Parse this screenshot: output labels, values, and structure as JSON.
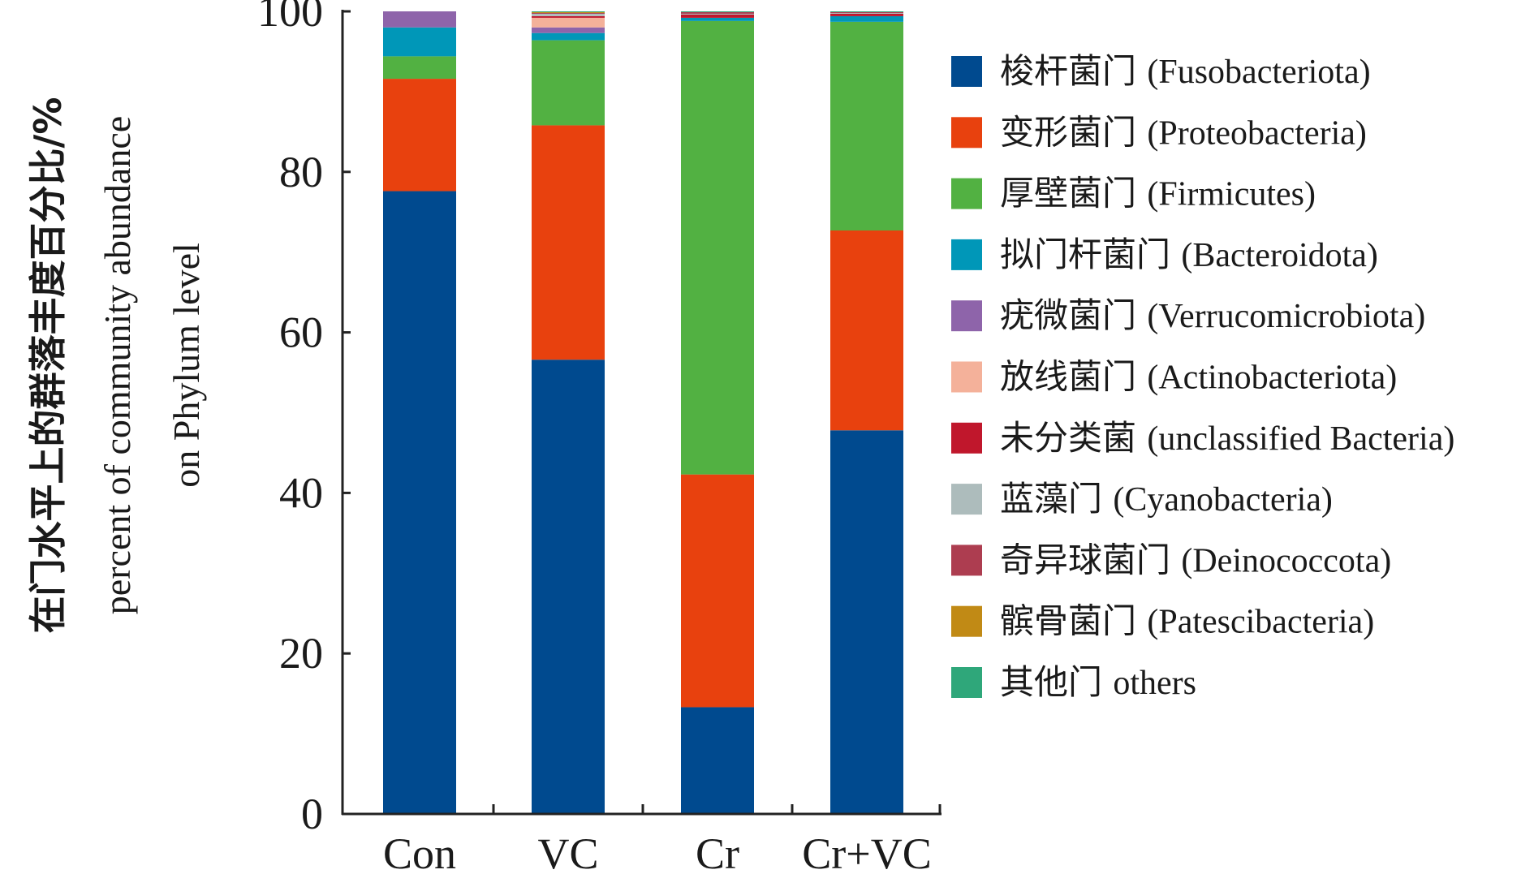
{
  "chart_data": {
    "type": "bar",
    "stacked": true,
    "categories": [
      "Con",
      "VC",
      "Cr",
      "Cr+VC"
    ],
    "ylabel": {
      "cn": "在门水平上的群落丰度百分比/%",
      "en_line1": "percent of community abundance",
      "en_line2": "on Phylum level"
    },
    "ylim": [
      0,
      100
    ],
    "yticks": [
      "0",
      "20",
      "40",
      "60",
      "80",
      "100"
    ],
    "legend_position": "right",
    "series": [
      {
        "name_cn": "梭杆菌门",
        "name_en": "(Fusobacteriota)",
        "color": "#004a8f",
        "values": [
          77.6,
          56.6,
          13.3,
          47.8
        ]
      },
      {
        "name_cn": "变形菌门",
        "name_en": "(Proteobacteria)",
        "color": "#e8410e",
        "values": [
          14.0,
          29.2,
          29.0,
          24.9
        ]
      },
      {
        "name_cn": "厚壁菌门",
        "name_en": "(Firmicutes)",
        "color": "#52b142",
        "values": [
          2.8,
          10.6,
          56.5,
          26.0
        ]
      },
      {
        "name_cn": "拟门杆菌门",
        "name_en": "(Bacteroidota)",
        "color": "#0097b8",
        "values": [
          3.6,
          0.9,
          0.4,
          0.7
        ]
      },
      {
        "name_cn": "疣微菌门",
        "name_en": "(Verrucomicrobiota)",
        "color": "#8e64aa",
        "values": [
          2.0,
          0.7,
          0.0,
          0.0
        ]
      },
      {
        "name_cn": "放线菌门",
        "name_en": "(Actinobacteriota)",
        "color": "#f4b19a",
        "values": [
          0.0,
          1.2,
          0.0,
          0.0
        ]
      },
      {
        "name_cn": "未分类菌",
        "name_en": "(unclassified Bacteria)",
        "color": "#c0172c",
        "values": [
          0.0,
          0.2,
          0.4,
          0.3
        ]
      },
      {
        "name_cn": "蓝藻门",
        "name_en": "(Cyanobacteria)",
        "color": "#adbcbc",
        "values": [
          0.0,
          0.3,
          0.1,
          0.1
        ]
      },
      {
        "name_cn": "奇异球菌门",
        "name_en": "(Deinococcota)",
        "color": "#ad3d50",
        "values": [
          0.0,
          0.1,
          0.2,
          0.1
        ]
      },
      {
        "name_cn": "髌骨菌门",
        "name_en": "(Patescibacteria)",
        "color": "#c18a15",
        "values": [
          0.0,
          0.1,
          0.0,
          0.0
        ]
      },
      {
        "name_cn": "其他门",
        "name_en": "others",
        "color": "#2fa77a",
        "values": [
          0.0,
          0.1,
          0.1,
          0.1
        ]
      }
    ]
  }
}
